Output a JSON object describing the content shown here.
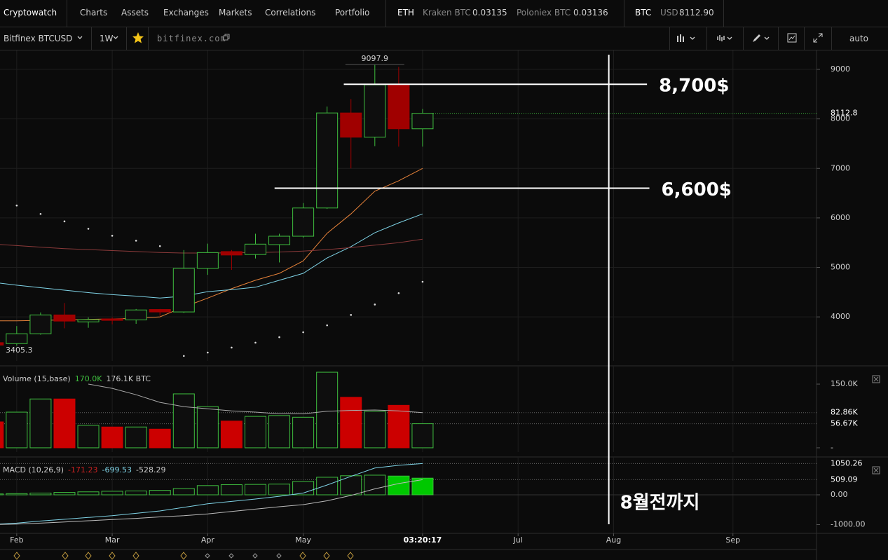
{
  "header": {
    "brand": "Cryptowatch",
    "nav": [
      "Charts",
      "Assets",
      "Exchanges",
      "Markets",
      "Correlations",
      "Portfolio"
    ],
    "tickers": [
      {
        "symbol": "ETH",
        "quotes": [
          {
            "label": "Kraken BTC",
            "price": "0.03135"
          },
          {
            "label": "Poloniex BTC",
            "price": "0.03136"
          }
        ]
      },
      {
        "symbol": "BTC",
        "quotes": [
          {
            "label": "USD",
            "price": "8112.90"
          }
        ]
      }
    ]
  },
  "toolbar": {
    "market": "Bitfinex BTCUSD",
    "period": "1W",
    "source": "bitfinex.com",
    "scale": "auto"
  },
  "chart_data": [
    {
      "type": "candlestick",
      "x": [
        0,
        1,
        2,
        3,
        4,
        5,
        6,
        7,
        8,
        9,
        10,
        11,
        12,
        13,
        14,
        15,
        16,
        17,
        18
      ],
      "open": [
        3480,
        3460,
        3660,
        4040,
        3900,
        3960,
        3940,
        4150,
        4100,
        4980,
        5320,
        5260,
        5460,
        5630,
        6200,
        8120,
        7630,
        8690,
        7800
      ],
      "high": [
        3500,
        3815,
        4090,
        4280,
        3990,
        3990,
        4160,
        4160,
        5350,
        5480,
        5350,
        5680,
        5680,
        6300,
        8250,
        8400,
        9097.9,
        9050,
        8200
      ],
      "low": [
        3405.3,
        3420,
        3640,
        3770,
        3780,
        3850,
        3860,
        4020,
        4080,
        4850,
        4950,
        5180,
        5100,
        5600,
        6180,
        7000,
        7450,
        7440,
        7440
      ],
      "close": [
        3430,
        3660,
        4040,
        3915,
        3945,
        3930,
        4140,
        4100,
        4980,
        5300,
        5250,
        5470,
        5630,
        6200,
        8120,
        7630,
        8690,
        7800,
        8112.8
      ],
      "up_color": "#3fbf3f",
      "down_color": "#a00000",
      "up_fill": "#0e0e0e",
      "lines": [
        {
          "color": "#e8833a",
          "values": [
            3920,
            3920,
            3930,
            3940,
            3950,
            3960,
            3970,
            4000,
            4200,
            4380,
            4570,
            4740,
            4880,
            5130,
            5690,
            6080,
            6540,
            6750,
            7000
          ]
        },
        {
          "color": "#7fd3e6",
          "values": [
            4700,
            4640,
            4590,
            4540,
            4490,
            4450,
            4420,
            4380,
            4420,
            4510,
            4550,
            4600,
            4740,
            4880,
            5190,
            5420,
            5700,
            5900,
            6080
          ]
        },
        {
          "color": "#8b3a3a",
          "values": [
            5470,
            5440,
            5410,
            5380,
            5360,
            5340,
            5320,
            5300,
            5290,
            5290,
            5295,
            5300,
            5310,
            5330,
            5360,
            5400,
            5450,
            5500,
            5570
          ]
        }
      ],
      "sar": {
        "color": "#dddddd",
        "values": [
          null,
          6250,
          6080,
          5930,
          5780,
          5640,
          5540,
          5430,
          3210,
          3280,
          3380,
          3480,
          3590,
          3690,
          3830,
          4040,
          4250,
          4480,
          4710
        ]
      },
      "xlim": [
        0.3,
        34.5
      ],
      "xticks": [
        {
          "value": 1,
          "label": "Feb"
        },
        {
          "value": 5,
          "label": "Mar"
        },
        {
          "value": 9,
          "label": "Apr"
        },
        {
          "value": 13,
          "label": "May"
        },
        {
          "value": 18,
          "label": "03:20:17"
        },
        {
          "value": 22,
          "label": "Jul"
        },
        {
          "value": 26,
          "label": "Aug"
        },
        {
          "value": 31,
          "label": "Sep"
        }
      ],
      "ylim": [
        3110,
        9340
      ],
      "yticks": [
        4000,
        5000,
        6000,
        7000,
        8000,
        9000
      ],
      "grid": true,
      "annotations": [
        {
          "type": "hline",
          "value": 8700,
          "x": [
            14.7,
            27.4
          ],
          "label": "8,700$"
        },
        {
          "type": "hline",
          "value": 6600,
          "x": [
            11.8,
            27.5
          ],
          "label": "6,600$"
        },
        {
          "type": "vline",
          "x": 25.8,
          "label": "8월전까지"
        }
      ]
    },
    {
      "type": "bar",
      "title": "Volume (15,base)",
      "legend_values": [
        "170.0K",
        "176.1K BTC"
      ],
      "legend_colors": [
        "#3fbf3f",
        "#cccccc"
      ],
      "x": [
        0,
        1,
        2,
        3,
        4,
        5,
        6,
        7,
        8,
        9,
        10,
        11,
        12,
        13,
        14,
        15,
        16,
        17,
        18
      ],
      "values": [
        61,
        84,
        115,
        115,
        53,
        49,
        49,
        44,
        127,
        97,
        63,
        74,
        76,
        72,
        178,
        119,
        86,
        100,
        56.67
      ],
      "colors": [
        "#cc0000",
        "#3fbf3f",
        "#3fbf3f",
        "#cc0000",
        "#3fbf3f",
        "#cc0000",
        "#3fbf3f",
        "#cc0000",
        "#3fbf3f",
        "#3fbf3f",
        "#cc0000",
        "#3fbf3f",
        "#3fbf3f",
        "#3fbf3f",
        "#3fbf3f",
        "#cc0000",
        "#3fbf3f",
        "#cc0000",
        "#3fbf3f"
      ],
      "ma": {
        "color": "#aaaaaa",
        "values": [
          null,
          null,
          null,
          null,
          150,
          140,
          125,
          107,
          97,
          92,
          87,
          84,
          80,
          80,
          86,
          88,
          89,
          87,
          82.86
        ]
      },
      "xlim": [
        0.3,
        34.5
      ],
      "ylim": [
        -10,
        188
      ],
      "yticks": [
        {
          "value": 0,
          "label": "-"
        },
        {
          "value": 150,
          "label": "150.0K"
        }
      ],
      "markers": [
        {
          "value": 82.86,
          "label": "82.86K"
        },
        {
          "value": 56.67,
          "label": "56.67K"
        }
      ]
    },
    {
      "type": "macd",
      "title": "MACD (10,26,9)",
      "legend_values": [
        "-171.23",
        "-699.53",
        "-528.29"
      ],
      "legend_colors": [
        "#cc2222",
        "#7fd3e6",
        "#cccccc"
      ],
      "x": [
        0,
        1,
        2,
        3,
        4,
        5,
        6,
        7,
        8,
        9,
        10,
        11,
        12,
        13,
        14,
        15,
        16,
        17,
        18
      ],
      "histogram": [
        30,
        40,
        60,
        80,
        100,
        120,
        130,
        150,
        210,
        310,
        340,
        350,
        360,
        450,
        590,
        640,
        660,
        630,
        560
      ],
      "colors": [
        "#0e0e0e",
        "#0e0e0e",
        "#0e0e0e",
        "#0e0e0e",
        "#0e0e0e",
        "#0e0e0e",
        "#0e0e0e",
        "#0e0e0e",
        "#0e0e0e",
        "#0e0e0e",
        "#0e0e0e",
        "#0e0e0e",
        "#0e0e0e",
        "#0e0e0e",
        "#0e0e0e",
        "#0e0e0e",
        "#0e0e0e",
        "#00c800",
        "#00c800"
      ],
      "edge_color": "#3fbf3f",
      "macd": {
        "color": "#7fd3e6",
        "values": [
          -990,
          -950,
          -880,
          -820,
          -760,
          -700,
          -620,
          -540,
          -420,
          -300,
          -220,
          -140,
          -50,
          60,
          330,
          620,
          900,
          990,
          1050.26
        ]
      },
      "signal": {
        "color": "#bbbbbb",
        "values": [
          -1000,
          -980,
          -950,
          -910,
          -870,
          -830,
          -790,
          -740,
          -700,
          -640,
          -560,
          -480,
          -400,
          -330,
          -200,
          -20,
          200,
          380,
          509.09
        ]
      },
      "xlim": [
        0.3,
        34.5
      ],
      "ylim": [
        -1270,
        1200
      ],
      "yticks": [
        {
          "value": 0,
          "label": "0.00"
        },
        {
          "value": -1000,
          "label": "-1000.00"
        }
      ],
      "markers": [
        1050.26,
        509.09
      ]
    }
  ]
}
